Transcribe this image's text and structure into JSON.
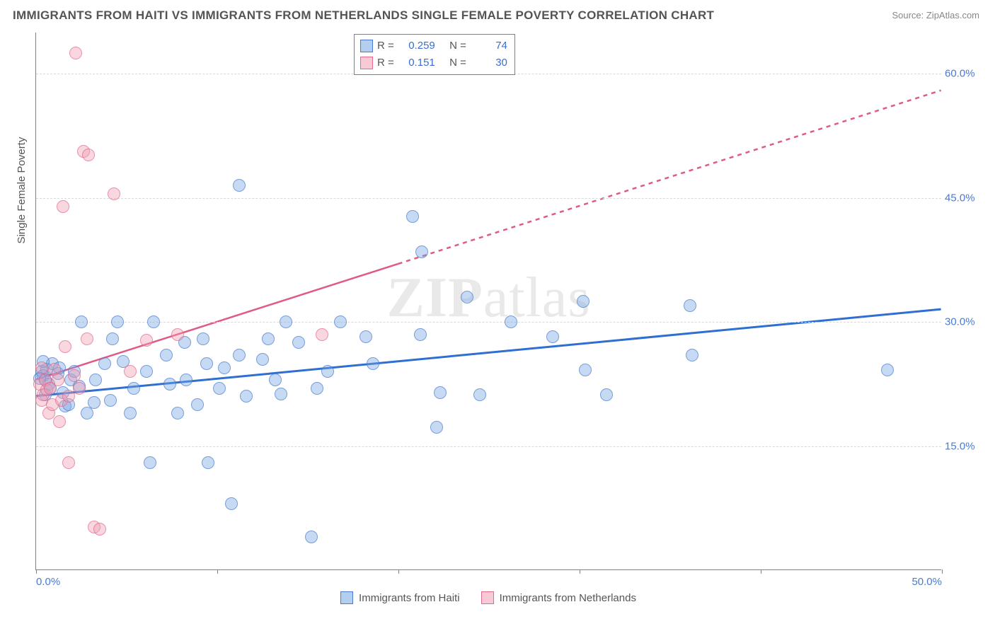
{
  "title": "IMMIGRANTS FROM HAITI VS IMMIGRANTS FROM NETHERLANDS SINGLE FEMALE POVERTY CORRELATION CHART",
  "source": "Source: ZipAtlas.com",
  "watermark": "ZIPatlas",
  "ylabel": "Single Female Poverty",
  "chart": {
    "type": "scatter",
    "xlim": [
      0,
      50
    ],
    "ylim": [
      0,
      65
    ],
    "xticks": [
      0,
      10,
      20,
      30,
      40,
      50
    ],
    "xtick_labels": {
      "0": "0.0%",
      "50": "50.0%"
    },
    "yticks": [
      15,
      30,
      45,
      60
    ],
    "ytick_labels": [
      "15.0%",
      "30.0%",
      "45.0%",
      "60.0%"
    ],
    "background_color": "#ffffff",
    "grid_color": "#d9d9d9",
    "marker_size": 18,
    "marker_opacity": 0.75
  },
  "series": [
    {
      "name": "Immigrants from Haiti",
      "color_fill": "rgba(118,166,226,0.55)",
      "color_stroke": "#4a7bd0",
      "R": "0.259",
      "N": "74",
      "trend": {
        "x1": 0,
        "y1": 21,
        "x2": 50,
        "y2": 31.5,
        "dashed_from": 50,
        "color": "#2f6fd1",
        "width": 3
      },
      "points": [
        [
          0.3,
          24
        ],
        [
          0.4,
          23.5
        ],
        [
          0.5,
          23
        ],
        [
          0.7,
          22.5
        ],
        [
          0.8,
          22
        ],
        [
          0.6,
          24.3
        ],
        [
          0.2,
          23.2
        ],
        [
          0.9,
          25
        ],
        [
          0.4,
          25.2
        ],
        [
          0.5,
          21.2
        ],
        [
          1.2,
          23.8
        ],
        [
          1.3,
          24.5
        ],
        [
          1.6,
          19.8
        ],
        [
          1.8,
          20
        ],
        [
          1.5,
          21.5
        ],
        [
          1.9,
          23
        ],
        [
          2.1,
          24
        ],
        [
          2.4,
          22.2
        ],
        [
          2.8,
          19
        ],
        [
          2.5,
          30
        ],
        [
          3.2,
          20.3
        ],
        [
          3.3,
          23
        ],
        [
          3.8,
          25
        ],
        [
          4.2,
          28
        ],
        [
          4.1,
          20.5
        ],
        [
          4.5,
          30
        ],
        [
          4.8,
          25.2
        ],
        [
          5.2,
          19
        ],
        [
          5.4,
          22
        ],
        [
          6.1,
          24
        ],
        [
          6.3,
          13
        ],
        [
          6.5,
          30
        ],
        [
          7.2,
          26
        ],
        [
          7.4,
          22.5
        ],
        [
          7.8,
          19
        ],
        [
          8.2,
          27.5
        ],
        [
          8.3,
          23
        ],
        [
          8.9,
          20
        ],
        [
          9.2,
          28
        ],
        [
          9.4,
          25
        ],
        [
          9.5,
          13
        ],
        [
          10.1,
          22
        ],
        [
          10.4,
          24.5
        ],
        [
          10.8,
          8
        ],
        [
          11.2,
          26
        ],
        [
          11.2,
          46.5
        ],
        [
          11.6,
          21
        ],
        [
          12.5,
          25.5
        ],
        [
          12.8,
          28
        ],
        [
          13.2,
          23
        ],
        [
          13.8,
          30
        ],
        [
          14.5,
          27.5
        ],
        [
          15.2,
          4
        ],
        [
          15.5,
          22
        ],
        [
          16.1,
          24
        ],
        [
          16.8,
          30
        ],
        [
          18.2,
          28.2
        ],
        [
          18.6,
          25
        ],
        [
          20.8,
          42.8
        ],
        [
          21.2,
          28.5
        ],
        [
          21.3,
          38.5
        ],
        [
          22.1,
          17.3
        ],
        [
          22.3,
          21.5
        ],
        [
          23.8,
          33
        ],
        [
          24.5,
          21.2
        ],
        [
          26.2,
          30
        ],
        [
          28.5,
          28.2
        ],
        [
          30.2,
          32.5
        ],
        [
          30.3,
          24.2
        ],
        [
          31.5,
          21.2
        ],
        [
          36.1,
          32
        ],
        [
          36.2,
          26
        ],
        [
          47.0,
          24.2
        ],
        [
          13.5,
          21.3
        ]
      ]
    },
    {
      "name": "Immigrants from Netherlands",
      "color_fill": "rgba(240,158,179,0.55)",
      "color_stroke": "#e26a8f",
      "R": "0.151",
      "N": "30",
      "trend": {
        "x1": 0,
        "y1": 23,
        "x2": 20,
        "y2": 37,
        "dashed_from": 20,
        "x3": 50,
        "y3": 58,
        "color": "#e05a86",
        "width": 2.5
      },
      "points": [
        [
          0.2,
          22.5
        ],
        [
          0.3,
          20.5
        ],
        [
          0.4,
          21.2
        ],
        [
          0.5,
          23
        ],
        [
          0.6,
          21.8
        ],
        [
          0.7,
          19
        ],
        [
          0.8,
          22
        ],
        [
          1.0,
          24.3
        ],
        [
          0.3,
          24.5
        ],
        [
          0.9,
          20
        ],
        [
          1.2,
          23
        ],
        [
          1.3,
          18
        ],
        [
          1.4,
          20.5
        ],
        [
          1.6,
          27
        ],
        [
          1.8,
          21
        ],
        [
          2.1,
          23.5
        ],
        [
          2.4,
          22
        ],
        [
          2.2,
          62.5
        ],
        [
          2.6,
          50.6
        ],
        [
          2.9,
          50.2
        ],
        [
          1.5,
          44
        ],
        [
          4.3,
          45.5
        ],
        [
          1.8,
          13
        ],
        [
          3.2,
          5.2
        ],
        [
          3.5,
          5
        ],
        [
          2.8,
          28
        ],
        [
          5.2,
          24
        ],
        [
          6.1,
          27.8
        ],
        [
          7.8,
          28.5
        ],
        [
          15.8,
          28.5
        ]
      ]
    }
  ],
  "legend_stats": {
    "rows": [
      {
        "series": 0,
        "R_label": "R =",
        "R": "0.259",
        "N_label": "N =",
        "N": "74"
      },
      {
        "series": 1,
        "R_label": "R =",
        "R": "0.151",
        "N_label": "N =",
        "N": "30"
      }
    ]
  },
  "bottom_legend": [
    {
      "series": 0,
      "label": "Immigrants from Haiti"
    },
    {
      "series": 1,
      "label": "Immigrants from Netherlands"
    }
  ]
}
